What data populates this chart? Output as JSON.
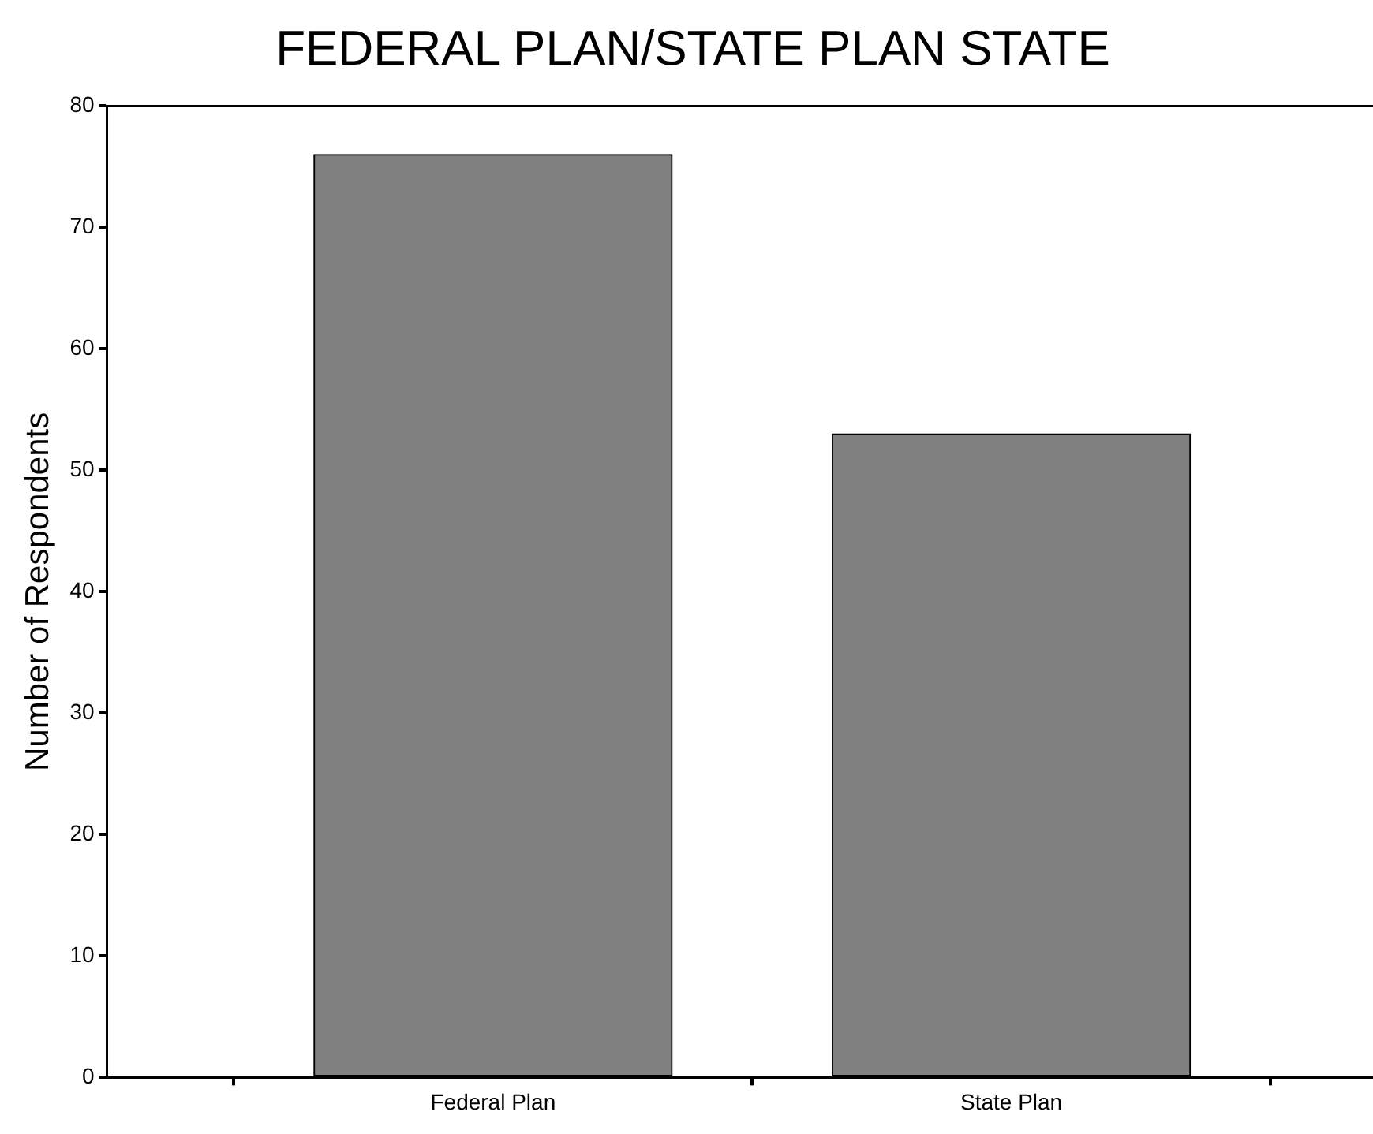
{
  "chart_data": {
    "type": "bar",
    "title": "FEDERAL PLAN/STATE PLAN STATE",
    "ylabel": "Number of Respondents",
    "categories": [
      "Federal Plan",
      "State Plan"
    ],
    "values": [
      76,
      53
    ],
    "color": "#808080",
    "ylim": [
      0,
      80
    ],
    "yticks": [
      0,
      10,
      20,
      30,
      40,
      50,
      60,
      70,
      80
    ],
    "grid": false,
    "legend": false
  }
}
